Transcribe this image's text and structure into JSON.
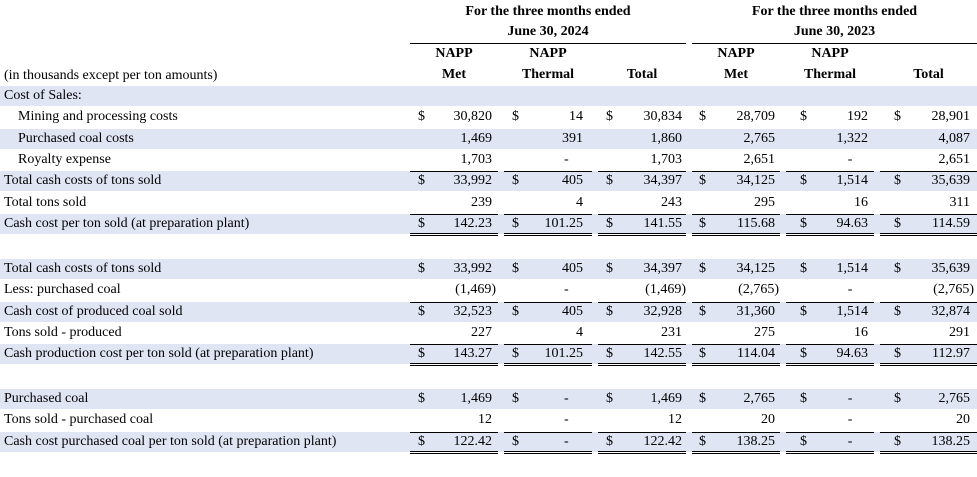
{
  "header": {
    "period_2024_line1": "For the three months ended",
    "period_2024_line2": "June 30, 2024",
    "period_2023_line1": "For the three months ended",
    "period_2023_line2": "June 30, 2023",
    "units_note": "(in thousands except per ton amounts)",
    "columns": [
      {
        "line1": "NAPP",
        "line2": "Met"
      },
      {
        "line1": "NAPP",
        "line2": "Thermal"
      },
      {
        "line1": "",
        "line2": "Total"
      },
      {
        "line1": "NAPP",
        "line2": "Met"
      },
      {
        "line1": "NAPP",
        "line2": "Thermal"
      },
      {
        "line1": "",
        "line2": "Total"
      }
    ]
  },
  "rows": [
    {
      "label": "Cost of Sales:",
      "values": [
        "",
        "",
        "",
        "",
        "",
        ""
      ],
      "dollars": [
        false,
        false,
        false,
        false,
        false,
        false
      ]
    },
    {
      "label": "Mining and processing costs",
      "values": [
        "30,820",
        "14",
        "30,834",
        "28,709",
        "192",
        "28,901"
      ],
      "dollars": [
        true,
        true,
        true,
        true,
        true,
        true
      ]
    },
    {
      "label": "Purchased coal costs",
      "values": [
        "1,469",
        "391",
        "1,860",
        "2,765",
        "1,322",
        "4,087"
      ],
      "dollars": [
        false,
        false,
        false,
        false,
        false,
        false
      ]
    },
    {
      "label": "Royalty expense",
      "values": [
        "1,703",
        "-",
        "1,703",
        "2,651",
        "-",
        "2,651"
      ],
      "dollars": [
        false,
        false,
        false,
        false,
        false,
        false
      ]
    },
    {
      "label": "Total cash costs of tons sold",
      "values": [
        "33,992",
        "405",
        "34,397",
        "34,125",
        "1,514",
        "35,639"
      ],
      "dollars": [
        true,
        true,
        true,
        true,
        true,
        true
      ]
    },
    {
      "label": "Total tons sold",
      "values": [
        "239",
        "4",
        "243",
        "295",
        "16",
        "311"
      ],
      "dollars": [
        false,
        false,
        false,
        false,
        false,
        false
      ]
    },
    {
      "label": "Cash cost per ton sold (at preparation plant)",
      "values": [
        "142.23",
        "101.25",
        "141.55",
        "115.68",
        "94.63",
        "114.59"
      ],
      "dollars": [
        true,
        true,
        true,
        true,
        true,
        true
      ]
    },
    {
      "label": "Total cash costs of tons sold",
      "values": [
        "33,992",
        "405",
        "34,397",
        "34,125",
        "1,514",
        "35,639"
      ],
      "dollars": [
        true,
        true,
        true,
        true,
        true,
        true
      ]
    },
    {
      "label": "Less: purchased coal",
      "values": [
        "(1,469)",
        "-",
        "(1,469)",
        "(2,765)",
        "-",
        "(2,765)"
      ],
      "dollars": [
        false,
        false,
        false,
        false,
        false,
        false
      ]
    },
    {
      "label": "Cash cost of produced coal sold",
      "values": [
        "32,523",
        "405",
        "32,928",
        "31,360",
        "1,514",
        "32,874"
      ],
      "dollars": [
        true,
        true,
        true,
        true,
        true,
        true
      ]
    },
    {
      "label": "Tons sold - produced",
      "values": [
        "227",
        "4",
        "231",
        "275",
        "16",
        "291"
      ],
      "dollars": [
        false,
        false,
        false,
        false,
        false,
        false
      ]
    },
    {
      "label": "Cash production cost per ton sold (at preparation plant)",
      "values": [
        "143.27",
        "101.25",
        "142.55",
        "114.04",
        "94.63",
        "112.97"
      ],
      "dollars": [
        true,
        true,
        true,
        true,
        true,
        true
      ]
    },
    {
      "label": "Purchased coal",
      "values": [
        "1,469",
        "-",
        "1,469",
        "2,765",
        "-",
        "2,765"
      ],
      "dollars": [
        true,
        true,
        true,
        true,
        true,
        true
      ]
    },
    {
      "label": "Tons sold - purchased coal",
      "values": [
        "12",
        "-",
        "12",
        "20",
        "-",
        "20"
      ],
      "dollars": [
        false,
        false,
        false,
        false,
        false,
        false
      ]
    },
    {
      "label": "Cash cost purchased coal per ton sold (at preparation plant)",
      "values": [
        "122.42",
        "-",
        "122.42",
        "138.25",
        "-",
        "138.25"
      ],
      "dollars": [
        true,
        true,
        true,
        true,
        true,
        true
      ]
    }
  ]
}
